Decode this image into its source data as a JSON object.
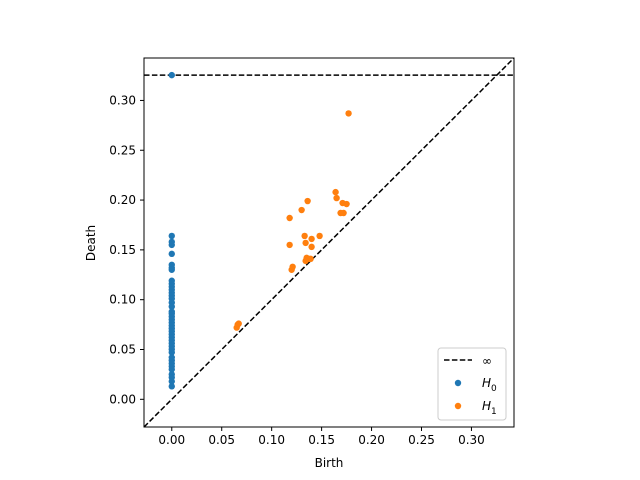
{
  "chart_data": {
    "type": "scatter",
    "title": "",
    "xlabel": "Birth",
    "ylabel": "Death",
    "xlim": [
      -0.0278,
      0.3426
    ],
    "ylim": [
      -0.0278,
      0.3426
    ],
    "xticks": [
      0.0,
      0.05,
      0.1,
      0.15,
      0.2,
      0.25,
      0.3
    ],
    "xtick_labels": [
      "0.00",
      "0.05",
      "0.10",
      "0.15",
      "0.20",
      "0.25",
      "0.30"
    ],
    "yticks": [
      0.0,
      0.05,
      0.1,
      0.15,
      0.2,
      0.25,
      0.3
    ],
    "ytick_labels": [
      "0.00",
      "0.05",
      "0.10",
      "0.15",
      "0.20",
      "0.25",
      "0.30"
    ],
    "grid": false,
    "legend_position": "lower right",
    "infinity_line": {
      "label": "∞",
      "y": 0.3254,
      "color": "#000000",
      "style": "dashed"
    },
    "diagonal": {
      "color": "#000000",
      "style": "dashed"
    },
    "series": [
      {
        "name": "H0",
        "color": "#1f77b4",
        "points": [
          [
            0.0,
            0.3254
          ],
          [
            0.0,
            0.164
          ],
          [
            0.0,
            0.158
          ],
          [
            0.0,
            0.155
          ],
          [
            0.0,
            0.146
          ],
          [
            0.0,
            0.135
          ],
          [
            0.0,
            0.132
          ],
          [
            0.0,
            0.13
          ],
          [
            0.0,
            0.119
          ],
          [
            0.0,
            0.116
          ],
          [
            0.0,
            0.113
          ],
          [
            0.0,
            0.11
          ],
          [
            0.0,
            0.107
          ],
          [
            0.0,
            0.104
          ],
          [
            0.0,
            0.101
          ],
          [
            0.0,
            0.097
          ],
          [
            0.0,
            0.093
          ],
          [
            0.0,
            0.088
          ],
          [
            0.0,
            0.086
          ],
          [
            0.0,
            0.083
          ],
          [
            0.0,
            0.08
          ],
          [
            0.0,
            0.077
          ],
          [
            0.0,
            0.074
          ],
          [
            0.0,
            0.071
          ],
          [
            0.0,
            0.068
          ],
          [
            0.0,
            0.065
          ],
          [
            0.0,
            0.062
          ],
          [
            0.0,
            0.059
          ],
          [
            0.0,
            0.056
          ],
          [
            0.0,
            0.053
          ],
          [
            0.0,
            0.05
          ],
          [
            0.0,
            0.047
          ],
          [
            0.0,
            0.042
          ],
          [
            0.0,
            0.039
          ],
          [
            0.0,
            0.036
          ],
          [
            0.0,
            0.033
          ],
          [
            0.0,
            0.03
          ],
          [
            0.0,
            0.025
          ],
          [
            0.0,
            0.022
          ],
          [
            0.0,
            0.018
          ],
          [
            0.0,
            0.013
          ]
        ]
      },
      {
        "name": "H1",
        "color": "#ff7f0e",
        "points": [
          [
            0.177,
            0.287
          ],
          [
            0.164,
            0.208
          ],
          [
            0.165,
            0.202
          ],
          [
            0.136,
            0.199
          ],
          [
            0.13,
            0.19
          ],
          [
            0.171,
            0.197
          ],
          [
            0.175,
            0.196
          ],
          [
            0.169,
            0.187
          ],
          [
            0.172,
            0.187
          ],
          [
            0.118,
            0.182
          ],
          [
            0.133,
            0.164
          ],
          [
            0.14,
            0.161
          ],
          [
            0.148,
            0.164
          ],
          [
            0.134,
            0.157
          ],
          [
            0.14,
            0.153
          ],
          [
            0.118,
            0.155
          ],
          [
            0.135,
            0.142
          ],
          [
            0.137,
            0.141
          ],
          [
            0.139,
            0.141
          ],
          [
            0.134,
            0.139
          ],
          [
            0.121,
            0.133
          ],
          [
            0.12,
            0.13
          ],
          [
            0.067,
            0.076
          ],
          [
            0.066,
            0.075
          ],
          [
            0.065,
            0.072
          ]
        ]
      }
    ],
    "legend": [
      {
        "marker": "dashed-line",
        "label": "∞"
      },
      {
        "marker": "dot",
        "label_base": "H",
        "label_sub": "0",
        "color": "#1f77b4"
      },
      {
        "marker": "dot",
        "label_base": "H",
        "label_sub": "1",
        "color": "#ff7f0e"
      }
    ]
  }
}
